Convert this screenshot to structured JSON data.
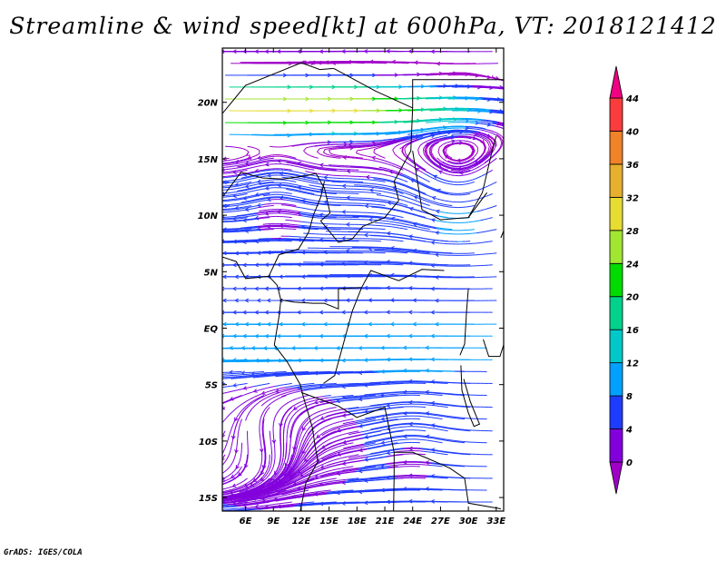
{
  "title": "Streamline & wind speed[kt] at 600hPa, VT: 2018121412",
  "footer": "GrADS: IGES/COLA",
  "map": {
    "projection": "lat-lon",
    "lon_range": [
      3.5,
      33.8
    ],
    "lat_range": [
      -16.2,
      24.8
    ],
    "lon_ticks": [
      "6E",
      "9E",
      "12E",
      "15E",
      "18E",
      "21E",
      "24E",
      "27E",
      "30E",
      "33E"
    ],
    "lat_ticks": [
      "20N",
      "15N",
      "10N",
      "5N",
      "EQ",
      "5S",
      "10S",
      "15S"
    ],
    "field": "streamlines colored by wind speed",
    "coastline_color": "#000000"
  },
  "colorbar": {
    "labels": [
      "0",
      "4",
      "8",
      "12",
      "16",
      "20",
      "24",
      "28",
      "32",
      "36",
      "40",
      "44"
    ],
    "colors": [
      "#a000c8",
      "#8200dc",
      "#1e3cff",
      "#00a0ff",
      "#00c8c8",
      "#00d28c",
      "#00dc00",
      "#a0e632",
      "#e6dc32",
      "#e6af2d",
      "#f08228",
      "#fa3c3c",
      "#f00082"
    ]
  }
}
